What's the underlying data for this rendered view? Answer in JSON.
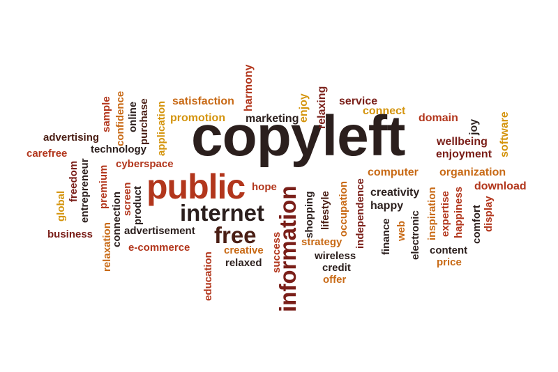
{
  "colors": {
    "dark": "#2b1f1d",
    "brown": "#4a1e14",
    "maroon": "#7a1f19",
    "red": "#b2361c",
    "orange": "#c86a16",
    "gold": "#d4940d"
  },
  "words": [
    {
      "text": "copyleft",
      "color": "#2b1f1d"
    },
    {
      "text": "public",
      "color": "#b2361c"
    },
    {
      "text": "internet",
      "color": "#2b1f1d"
    },
    {
      "text": "free",
      "color": "#4a1e14"
    },
    {
      "text": "information",
      "color": "#7a1f19"
    },
    {
      "text": "satisfaction",
      "color": "#c86a16"
    },
    {
      "text": "harmony",
      "color": "#b2361c"
    },
    {
      "text": "service",
      "color": "#7a1f19"
    },
    {
      "text": "connect",
      "color": "#d4940d"
    },
    {
      "text": "promotion",
      "color": "#d4940d"
    },
    {
      "text": "marketing",
      "color": "#2b1f1d"
    },
    {
      "text": "enjoy",
      "color": "#d4940d"
    },
    {
      "text": "relaxing",
      "color": "#7a1f19"
    },
    {
      "text": "domain",
      "color": "#b2361c"
    },
    {
      "text": "joy",
      "color": "#2b1f1d"
    },
    {
      "text": "software",
      "color": "#d4940d"
    },
    {
      "text": "wellbeing",
      "color": "#7a1f19"
    },
    {
      "text": "enjoyment",
      "color": "#7a1f19"
    },
    {
      "text": "computer",
      "color": "#c86a16"
    },
    {
      "text": "organization",
      "color": "#c86a16"
    },
    {
      "text": "download",
      "color": "#b2361c"
    },
    {
      "text": "creativity",
      "color": "#2b1f1d"
    },
    {
      "text": "happy",
      "color": "#2b1f1d"
    },
    {
      "text": "advertising",
      "color": "#4a1e14"
    },
    {
      "text": "carefree",
      "color": "#b2361c"
    },
    {
      "text": "technology",
      "color": "#2b1f1d"
    },
    {
      "text": "cyberspace",
      "color": "#b2361c"
    },
    {
      "text": "sample",
      "color": "#b2361c"
    },
    {
      "text": "confidence",
      "color": "#c86a16"
    },
    {
      "text": "online",
      "color": "#2b1f1d"
    },
    {
      "text": "purchase",
      "color": "#4a1e14"
    },
    {
      "text": "application",
      "color": "#d4940d"
    },
    {
      "text": "hope",
      "color": "#b2361c"
    },
    {
      "text": "global",
      "color": "#d4940d"
    },
    {
      "text": "freedom",
      "color": "#7a1f19"
    },
    {
      "text": "entrepreneur",
      "color": "#2b1f1d"
    },
    {
      "text": "premium",
      "color": "#b2361c"
    },
    {
      "text": "relaxation",
      "color": "#c86a16"
    },
    {
      "text": "screen",
      "color": "#b2361c"
    },
    {
      "text": "connection",
      "color": "#2b1f1d"
    },
    {
      "text": "product",
      "color": "#2b1f1d"
    },
    {
      "text": "business",
      "color": "#7a1f19"
    },
    {
      "text": "advertisement",
      "color": "#2b1f1d"
    },
    {
      "text": "e-commerce",
      "color": "#b2361c"
    },
    {
      "text": "education",
      "color": "#b2361c"
    },
    {
      "text": "creative",
      "color": "#c86a16"
    },
    {
      "text": "relaxed",
      "color": "#2b1f1d"
    },
    {
      "text": "success",
      "color": "#b2361c"
    },
    {
      "text": "shopping",
      "color": "#2b1f1d"
    },
    {
      "text": "lifestyle",
      "color": "#4a1e14"
    },
    {
      "text": "occupation",
      "color": "#c86a16"
    },
    {
      "text": "independence",
      "color": "#7a1f19"
    },
    {
      "text": "strategy",
      "color": "#c86a16"
    },
    {
      "text": "wireless",
      "color": "#2b1f1d"
    },
    {
      "text": "credit",
      "color": "#2b1f1d"
    },
    {
      "text": "offer",
      "color": "#c86a16"
    },
    {
      "text": "finance",
      "color": "#2b1f1d"
    },
    {
      "text": "web",
      "color": "#c86a16"
    },
    {
      "text": "electronic",
      "color": "#2b1f1d"
    },
    {
      "text": "inspiration",
      "color": "#c86a16"
    },
    {
      "text": "expertise",
      "color": "#b2361c"
    },
    {
      "text": "happiness",
      "color": "#b2361c"
    },
    {
      "text": "comfort",
      "color": "#2b1f1d"
    },
    {
      "text": "display",
      "color": "#b2361c"
    },
    {
      "text": "content",
      "color": "#2b1f1d"
    },
    {
      "text": "price",
      "color": "#c86a16"
    }
  ]
}
